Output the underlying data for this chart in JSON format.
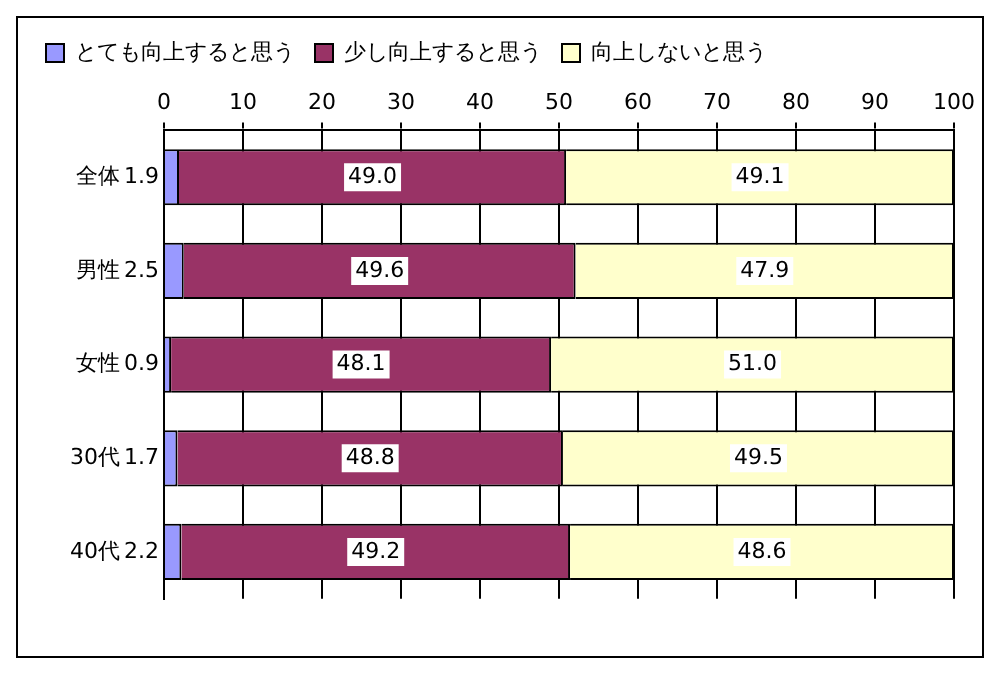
{
  "chart_data": {
    "type": "bar",
    "orientation": "horizontal",
    "stacked": true,
    "categories": [
      "全体",
      "男性",
      "女性",
      "30代",
      "40代"
    ],
    "series": [
      {
        "name": "とても向上すると思う",
        "color": "#9999ff",
        "values": [
          1.9,
          2.5,
          0.9,
          1.7,
          2.2
        ],
        "value_labels": [
          "1.9",
          "2.5",
          "0.9",
          "1.7",
          "2.2"
        ]
      },
      {
        "name": "少し向上すると思う",
        "color": "#993366",
        "values": [
          49.0,
          49.6,
          48.1,
          48.8,
          49.2
        ],
        "value_labels": [
          "49.0",
          "49.6",
          "48.1",
          "48.8",
          "49.2"
        ]
      },
      {
        "name": "向上しないと思う",
        "color": "#ffffcc",
        "values": [
          49.1,
          47.9,
          51.0,
          49.5,
          48.6
        ],
        "value_labels": [
          "49.1",
          "47.9",
          "51.0",
          "49.5",
          "48.6"
        ]
      }
    ],
    "xlim": [
      0,
      100
    ],
    "xticks": [
      0,
      10,
      20,
      30,
      40,
      50,
      60,
      70,
      80,
      90,
      100
    ],
    "grid": "x",
    "legend": "top"
  }
}
